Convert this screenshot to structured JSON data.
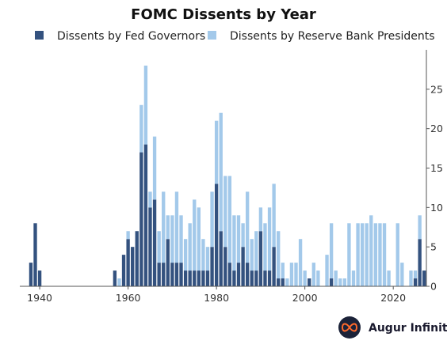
{
  "chart_data": {
    "type": "bar",
    "stacked": true,
    "title": "FOMC Dissents by Year",
    "xlabel": "",
    "ylabel": "",
    "xlim": [
      1935.5,
      2027.5
    ],
    "ylim": [
      0,
      30
    ],
    "x_ticks": [
      1940,
      1960,
      1980,
      2000,
      2020
    ],
    "y_ticks": [
      0,
      5,
      10,
      15,
      20,
      25
    ],
    "y_axis_position": "right",
    "grid": false,
    "legend_position": "top",
    "series": [
      {
        "name": "Dissents by Fed Governors",
        "color": "#34527f",
        "points": [
          [
            1938,
            3
          ],
          [
            1939,
            8
          ],
          [
            1940,
            2
          ],
          [
            1957,
            2
          ],
          [
            1959,
            4
          ],
          [
            1960,
            6
          ],
          [
            1961,
            5
          ],
          [
            1962,
            7
          ],
          [
            1963,
            17
          ],
          [
            1964,
            18
          ],
          [
            1965,
            10
          ],
          [
            1966,
            11
          ],
          [
            1967,
            3
          ],
          [
            1968,
            3
          ],
          [
            1969,
            6
          ],
          [
            1970,
            3
          ],
          [
            1971,
            3
          ],
          [
            1972,
            3
          ],
          [
            1973,
            2
          ],
          [
            1974,
            2
          ],
          [
            1975,
            2
          ],
          [
            1976,
            2
          ],
          [
            1977,
            2
          ],
          [
            1978,
            2
          ],
          [
            1979,
            5
          ],
          [
            1980,
            13
          ],
          [
            1981,
            7
          ],
          [
            1982,
            5
          ],
          [
            1983,
            3
          ],
          [
            1984,
            2
          ],
          [
            1985,
            3
          ],
          [
            1986,
            5
          ],
          [
            1987,
            3
          ],
          [
            1988,
            2
          ],
          [
            1989,
            2
          ],
          [
            1990,
            7
          ],
          [
            1991,
            2
          ],
          [
            1992,
            2
          ],
          [
            1993,
            5
          ],
          [
            1994,
            1
          ],
          [
            1995,
            1
          ],
          [
            2001,
            1
          ],
          [
            2006,
            1
          ],
          [
            2025,
            1
          ],
          [
            2026,
            6
          ],
          [
            2027,
            2
          ]
        ]
      },
      {
        "name": "Dissents by Reserve Bank Presidents",
        "color": "#a3c9ea",
        "points": [
          [
            1958,
            1
          ],
          [
            1960,
            1
          ],
          [
            1963,
            6
          ],
          [
            1964,
            10
          ],
          [
            1965,
            2
          ],
          [
            1966,
            8
          ],
          [
            1967,
            4
          ],
          [
            1968,
            9
          ],
          [
            1969,
            3
          ],
          [
            1970,
            6
          ],
          [
            1971,
            9
          ],
          [
            1972,
            6
          ],
          [
            1973,
            4
          ],
          [
            1974,
            6
          ],
          [
            1975,
            9
          ],
          [
            1976,
            8
          ],
          [
            1977,
            4
          ],
          [
            1978,
            3
          ],
          [
            1979,
            7
          ],
          [
            1980,
            8
          ],
          [
            1981,
            15
          ],
          [
            1982,
            9
          ],
          [
            1983,
            11
          ],
          [
            1984,
            7
          ],
          [
            1985,
            6
          ],
          [
            1986,
            3
          ],
          [
            1987,
            9
          ],
          [
            1988,
            4
          ],
          [
            1989,
            5
          ],
          [
            1990,
            3
          ],
          [
            1991,
            6
          ],
          [
            1992,
            8
          ],
          [
            1993,
            8
          ],
          [
            1994,
            6
          ],
          [
            1995,
            2
          ],
          [
            1996,
            1
          ],
          [
            1997,
            3
          ],
          [
            1998,
            3
          ],
          [
            1999,
            6
          ],
          [
            2000,
            2
          ],
          [
            2002,
            3
          ],
          [
            2003,
            2
          ],
          [
            2005,
            4
          ],
          [
            2006,
            7
          ],
          [
            2007,
            2
          ],
          [
            2008,
            1
          ],
          [
            2009,
            1
          ],
          [
            2010,
            8
          ],
          [
            2011,
            2
          ],
          [
            2012,
            8
          ],
          [
            2013,
            8
          ],
          [
            2014,
            8
          ],
          [
            2015,
            9
          ],
          [
            2016,
            8
          ],
          [
            2017,
            8
          ],
          [
            2018,
            8
          ],
          [
            2019,
            2
          ],
          [
            2021,
            8
          ],
          [
            2022,
            3
          ],
          [
            2024,
            2
          ],
          [
            2025,
            1
          ],
          [
            2026,
            3
          ]
        ]
      }
    ],
    "brand": "Augur Infinity"
  }
}
